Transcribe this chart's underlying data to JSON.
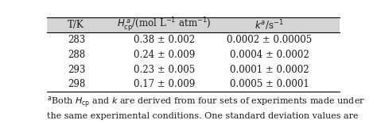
{
  "header_row": [
    "T/K",
    "H_cp^a/(mol L^-1 atm^-1)",
    "k^a/s^-1"
  ],
  "rows": [
    [
      "283",
      "0.38 ± 0.002",
      "0.0002 ± 0.00005"
    ],
    [
      "288",
      "0.24 ± 0.009",
      "0.0004 ± 0.0002"
    ],
    [
      "293",
      "0.23 ± 0.005",
      "0.0001 ± 0.0002"
    ],
    [
      "298",
      "0.17 ± 0.009",
      "0.0005 ± 0.0001"
    ]
  ],
  "header_bg": "#d4d4d4",
  "bg_color": "#ffffff",
  "text_color": "#1a1a1a",
  "font_size": 8.5,
  "fig_width": 4.74,
  "fig_height": 1.57
}
